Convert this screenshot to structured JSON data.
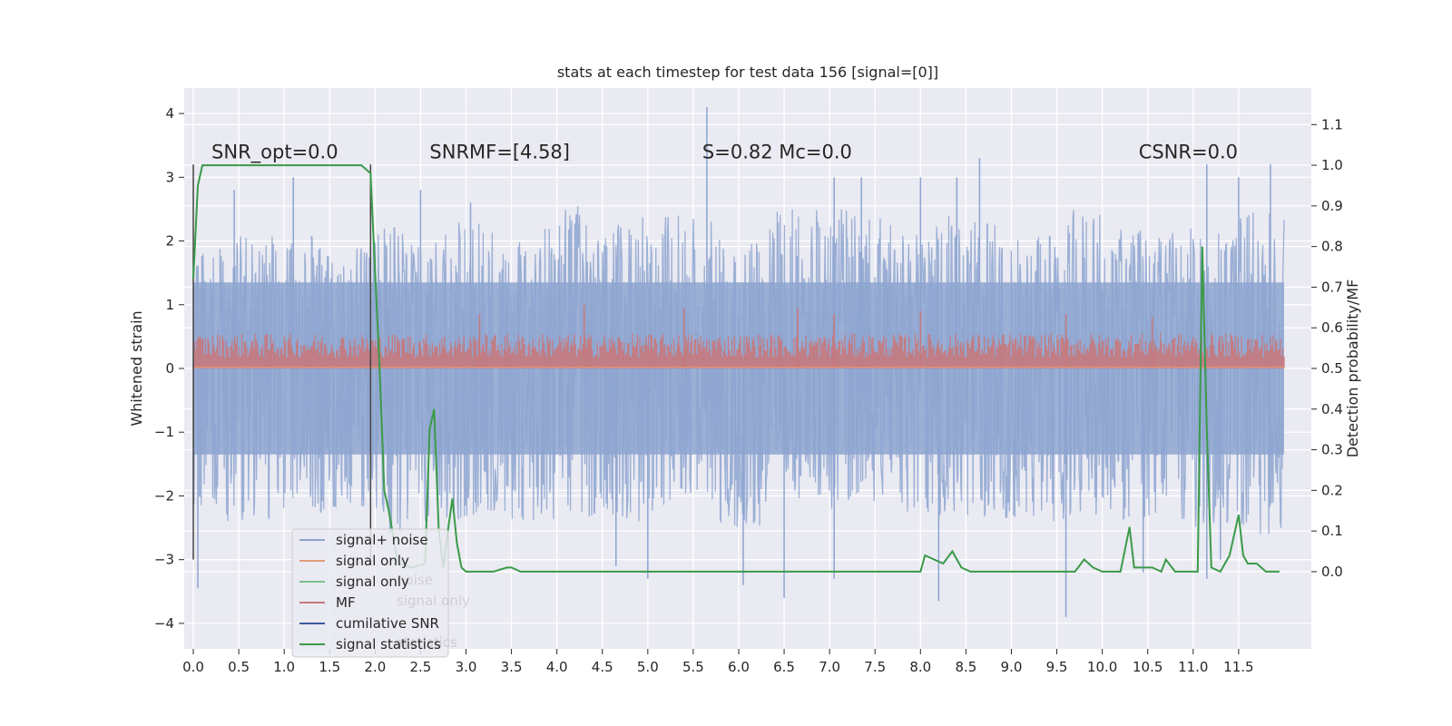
{
  "chart_data": {
    "type": "line",
    "title": "stats at each timestep for test data 156 [signal=[0]]",
    "ylabel_left": "Whitened strain",
    "ylabel_right": "Detection probability/MF",
    "xlim": [
      -0.1,
      12.3
    ],
    "ylim_left": [
      -4.4,
      4.4
    ],
    "ylim_right": [
      -0.19,
      1.19
    ],
    "grid": true,
    "x_ticks": [
      0.0,
      0.5,
      1.0,
      1.5,
      2.0,
      2.5,
      3.0,
      3.5,
      4.0,
      4.5,
      5.0,
      5.5,
      6.0,
      6.5,
      7.0,
      7.5,
      8.0,
      8.5,
      9.0,
      9.5,
      10.0,
      10.5,
      11.0,
      11.5
    ],
    "x_tick_labels": [
      "0.0",
      "0.5",
      "1.0",
      "1.5",
      "2.0",
      "2.5",
      "3.0",
      "3.5",
      "4.0",
      "4.5",
      "5.0",
      "5.5",
      "6.0",
      "6.5",
      "7.0",
      "7.5",
      "8.0",
      "8.5",
      "9.0",
      "9.5",
      "10.0",
      "10.5",
      "11.0",
      "11.5"
    ],
    "y_left_ticks": [
      -4,
      -3,
      -2,
      -1,
      0,
      1,
      2,
      3,
      4
    ],
    "y_left_tick_labels": [
      "−4",
      "−3",
      "−2",
      "−1",
      "0",
      "1",
      "2",
      "3",
      "4"
    ],
    "y_right_ticks": [
      0.0,
      0.1,
      0.2,
      0.3,
      0.4,
      0.5,
      0.6,
      0.7,
      0.8,
      0.9,
      1.0,
      1.1
    ],
    "y_right_tick_labels": [
      "0.0",
      "0.1",
      "0.2",
      "0.3",
      "0.4",
      "0.5",
      "0.6",
      "0.7",
      "0.8",
      "0.9",
      "1.0",
      "1.1"
    ],
    "annotations": [
      {
        "text": "SNR_opt=0.0",
        "x": 0.2,
        "y": 3.3
      },
      {
        "text": "SNRMF=[4.58]",
        "x": 2.6,
        "y": 3.3
      },
      {
        "text": "S=0.82   Mc=0.0",
        "x": 5.6,
        "y": 3.3
      },
      {
        "text": "CSNR=0.0",
        "x": 10.4,
        "y": 3.3
      }
    ],
    "vertical_lines": [
      {
        "x": 0.0,
        "y0": -3.0,
        "y1": 3.2
      },
      {
        "x": 1.95,
        "y0": -3.0,
        "y1": 3.2
      }
    ],
    "legend": {
      "placement": "lower-left",
      "entries": [
        {
          "label": "signal+ noise",
          "color": "#8da4d0"
        },
        {
          "label": "signal only",
          "color": "#e09a7a"
        },
        {
          "label": "signal only",
          "color": "#79c08a"
        },
        {
          "label": "MF",
          "color": "#c8787a"
        },
        {
          "label": "cumilative SNR",
          "color": "#3a5aa0"
        },
        {
          "label": "signal statistics",
          "color": "#3a9a48"
        }
      ],
      "ghost_labels": [
        "noise",
        "signal only",
        "statistics"
      ]
    },
    "series": [
      {
        "name": "signal+ noise",
        "color": "#8da4d0",
        "x_range": [
          0.0,
          12.0
        ],
        "envelope_max": [
          1.9,
          2.1,
          2.2,
          1.9,
          2.3,
          2.1,
          2.3,
          2.0,
          2.6,
          2.3,
          2.4,
          2.4,
          2.1,
          2.5,
          2.5,
          2.4,
          2.1,
          2.4,
          2.3,
          2.1,
          2.5,
          2.2,
          2.2,
          2.4,
          2.5
        ],
        "envelope_min": [
          -2.4,
          -2.4,
          -2.3,
          -2.2,
          -2.6,
          -2.4,
          -2.4,
          -2.4,
          -2.4,
          -2.4,
          -2.5,
          -2.1,
          -2.5,
          -2.1,
          -2.2,
          -2.1,
          -2.5,
          -2.4,
          -2.4,
          -2.4,
          -2.3,
          -2.4,
          -2.5,
          -2.5,
          -2.6
        ],
        "spikes": [
          [
            0.05,
            -3.45
          ],
          [
            0.45,
            2.8
          ],
          [
            1.1,
            3.0
          ],
          [
            2.5,
            2.8
          ],
          [
            3.05,
            2.6
          ],
          [
            4.65,
            -3.1
          ],
          [
            5.0,
            -3.3
          ],
          [
            5.65,
            4.1
          ],
          [
            6.05,
            -3.4
          ],
          [
            6.5,
            -3.6
          ],
          [
            7.05,
            3.0
          ],
          [
            7.05,
            -3.3
          ],
          [
            7.35,
            3.0
          ],
          [
            8.0,
            3.0
          ],
          [
            8.2,
            -3.65
          ],
          [
            8.4,
            3.0
          ],
          [
            8.65,
            3.3
          ],
          [
            9.6,
            -3.9
          ],
          [
            10.45,
            -3.2
          ],
          [
            11.15,
            3.2
          ],
          [
            11.15,
            -3.3
          ],
          [
            11.3,
            -3.0
          ],
          [
            11.5,
            3.0
          ],
          [
            11.85,
            3.2
          ]
        ]
      },
      {
        "name": "MF",
        "color": "#c8787a",
        "x_range": [
          0.0,
          12.0
        ],
        "baseline": 0.0,
        "band_top": 0.55,
        "spikes": [
          [
            3.15,
            0.85
          ],
          [
            4.3,
            1.0
          ],
          [
            5.4,
            0.95
          ],
          [
            6.65,
            0.95
          ],
          [
            7.05,
            0.85
          ],
          [
            8.0,
            0.9
          ],
          [
            9.6,
            0.85
          ],
          [
            10.55,
            0.8
          ]
        ]
      },
      {
        "name": "signal statistics",
        "color": "#3a9a48",
        "axis": "right",
        "x": [
          0.0,
          0.05,
          0.1,
          0.2,
          0.4,
          0.8,
          1.2,
          1.6,
          1.85,
          1.95,
          2.05,
          2.1,
          2.15,
          2.25,
          2.4,
          2.55,
          2.6,
          2.65,
          2.7,
          2.75,
          2.8,
          2.85,
          2.9,
          2.95,
          3.0,
          3.1,
          3.3,
          3.45,
          3.5,
          3.6,
          4.0,
          5.0,
          6.0,
          7.0,
          8.0,
          8.05,
          8.15,
          8.25,
          8.35,
          8.45,
          8.55,
          9.0,
          9.7,
          9.8,
          9.9,
          10.0,
          10.2,
          10.3,
          10.35,
          10.4,
          10.45,
          10.55,
          10.65,
          10.7,
          10.8,
          10.95,
          11.0,
          11.05,
          11.1,
          11.15,
          11.2,
          11.3,
          11.4,
          11.5,
          11.55,
          11.6,
          11.7,
          11.8,
          11.95
        ],
        "y": [
          0.72,
          0.95,
          1.0,
          1.0,
          1.0,
          1.0,
          1.0,
          1.0,
          1.0,
          0.98,
          0.5,
          0.2,
          0.15,
          0.02,
          0.01,
          0.02,
          0.35,
          0.4,
          0.1,
          0.01,
          0.1,
          0.18,
          0.07,
          0.01,
          0.0,
          0.0,
          0.0,
          0.01,
          0.01,
          0.0,
          0.0,
          0.0,
          0.0,
          0.0,
          0.0,
          0.04,
          0.03,
          0.02,
          0.05,
          0.01,
          0.0,
          0.0,
          0.0,
          0.03,
          0.01,
          0.0,
          0.0,
          0.11,
          0.01,
          0.01,
          0.01,
          0.01,
          0.0,
          0.03,
          0.0,
          0.0,
          0.0,
          0.0,
          0.8,
          0.35,
          0.01,
          0.0,
          0.04,
          0.14,
          0.04,
          0.02,
          0.02,
          0.0,
          0.0
        ]
      }
    ]
  }
}
